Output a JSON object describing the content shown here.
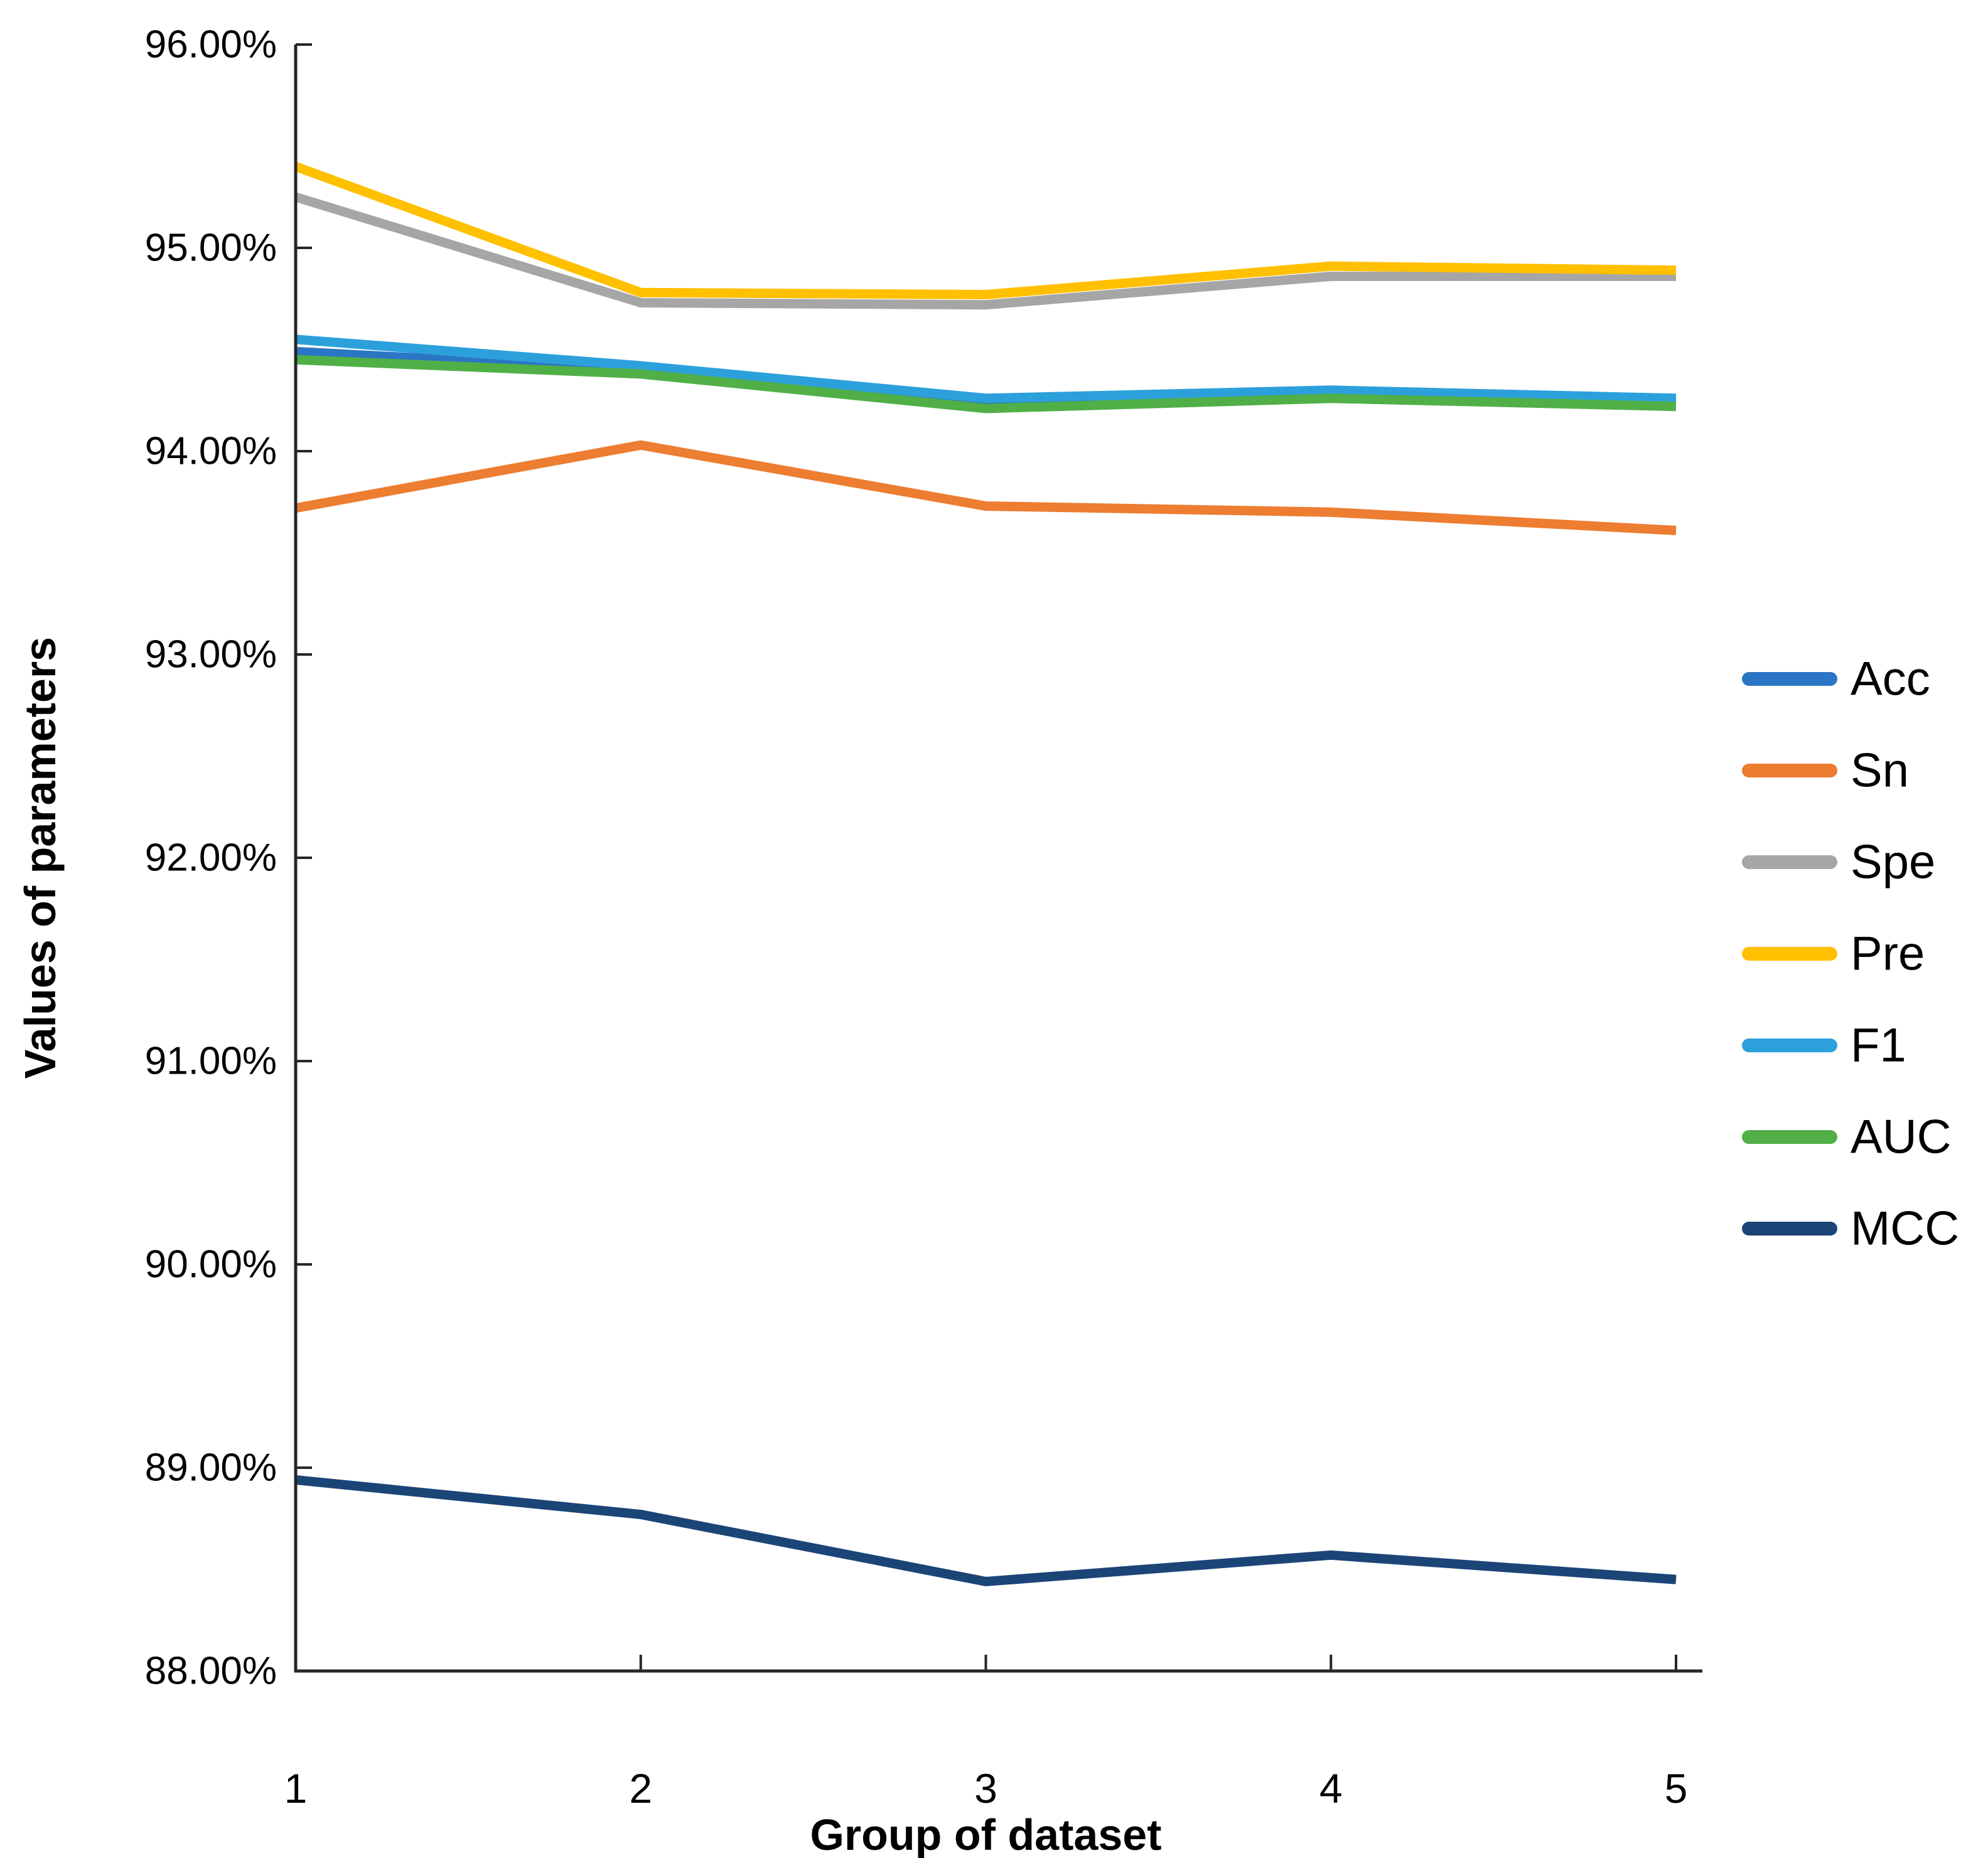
{
  "chart_data": {
    "type": "line",
    "title": "",
    "xlabel": "Group of dataset",
    "ylabel": "Values of parameters",
    "categories": [
      1,
      2,
      3,
      4,
      5
    ],
    "x_tick_labels": [
      "1",
      "2",
      "3",
      "4",
      "5"
    ],
    "y_tick_labels": [
      "96.00%",
      "95.00%",
      "94.00%",
      "93.00%",
      "92.00%",
      "91.00%",
      "90.00%",
      "89.00%",
      "88.00%"
    ],
    "y_tick_values": [
      96,
      95,
      94,
      93,
      92,
      91,
      90,
      89,
      88
    ],
    "ylim": [
      88,
      96
    ],
    "y_step": 1,
    "grid": false,
    "legend_position": "right",
    "axis_color": "#262626",
    "background_color": "#ffffff",
    "series": [
      {
        "name": "Acc",
        "color": "#2B76C4",
        "values": [
          94.49,
          94.4,
          94.24,
          94.28,
          94.24
        ]
      },
      {
        "name": "Sn",
        "color": "#ED7D31",
        "values": [
          93.72,
          94.03,
          93.73,
          93.7,
          93.61
        ]
      },
      {
        "name": "Spe",
        "color": "#A6A6A6",
        "values": [
          95.25,
          94.73,
          94.72,
          94.86,
          94.86
        ]
      },
      {
        "name": "Pre",
        "color": "#FFC000",
        "values": [
          95.4,
          94.78,
          94.77,
          94.91,
          94.89
        ]
      },
      {
        "name": "F1",
        "color": "#2CA0DB",
        "values": [
          94.55,
          94.42,
          94.26,
          94.3,
          94.26
        ]
      },
      {
        "name": "AUC",
        "color": "#50AF47",
        "values": [
          94.45,
          94.38,
          94.21,
          94.26,
          94.22
        ]
      },
      {
        "name": "MCC",
        "color": "#1C4577",
        "values": [
          88.94,
          88.77,
          88.44,
          88.57,
          88.45
        ]
      }
    ]
  },
  "layout_note_visible_text_only": true
}
